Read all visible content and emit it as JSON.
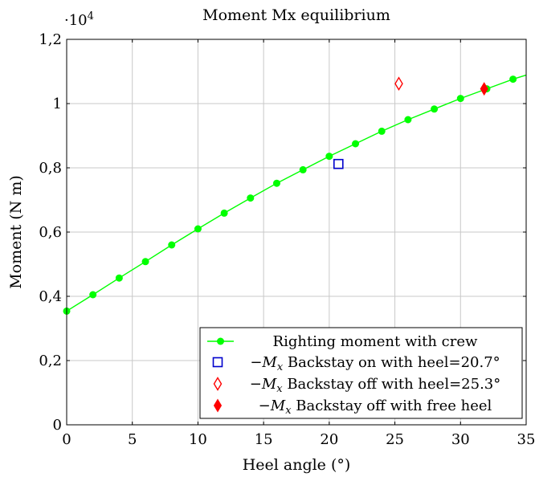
{
  "chart_data": {
    "type": "line",
    "title": "Moment Mx equilibrium",
    "xlabel": "Heel angle (°)",
    "ylabel": "Moment (N m)",
    "y_multiplier": "·10",
    "y_multiplier_exponent": "4",
    "xlim": [
      0,
      35
    ],
    "ylim": [
      0,
      12000
    ],
    "x_ticks": [
      0,
      5,
      10,
      15,
      20,
      25,
      30,
      35
    ],
    "x_tick_labels": [
      "0",
      "5",
      "10",
      "15",
      "20",
      "25",
      "30",
      "35"
    ],
    "y_ticks": [
      0,
      2000,
      4000,
      6000,
      8000,
      10000,
      12000
    ],
    "y_tick_labels": [
      "0",
      "0,2",
      "0,4",
      "0,6",
      "0,8",
      "1",
      "1,2"
    ],
    "grid": true,
    "legend_position": "bottom-right",
    "series": [
      {
        "name": "Righting moment with crew",
        "marker": "circle",
        "color": "#00ff00",
        "x": [
          0,
          2,
          4,
          6,
          8,
          10,
          12,
          14,
          16,
          18,
          20,
          22,
          24,
          26,
          28,
          30,
          32,
          34,
          35.5
        ],
        "y": [
          3540,
          4050,
          4570,
          5080,
          5600,
          6100,
          6590,
          7060,
          7520,
          7940,
          8360,
          8750,
          9140,
          9500,
          9830,
          10160,
          10460,
          10760,
          10950
        ]
      },
      {
        "name": "−Mₓ Backstay on with heel=20.7°",
        "label_prefix": "−",
        "label_symbol": "M",
        "label_subscript": "x",
        "label_rest": " Backstay on with heel=20.7°",
        "marker": "square-open",
        "color": "#0000cc",
        "x": [
          20.7
        ],
        "y": [
          8120
        ]
      },
      {
        "name": "−Mₓ Backstay off with heel=25.3°",
        "label_prefix": "−",
        "label_symbol": "M",
        "label_subscript": "x",
        "label_rest": " Backstay off with heel=25.3°",
        "marker": "diamond-open",
        "color": "#ff0000",
        "x": [
          25.3
        ],
        "y": [
          10620
        ]
      },
      {
        "name": "−Mₓ Backstay off with free heel",
        "label_prefix": "−",
        "label_symbol": "M",
        "label_subscript": "x",
        "label_rest": " Backstay off with free heel",
        "marker": "diamond-filled",
        "color": "#ff0000",
        "x": [
          31.8
        ],
        "y": [
          10460
        ]
      }
    ]
  }
}
